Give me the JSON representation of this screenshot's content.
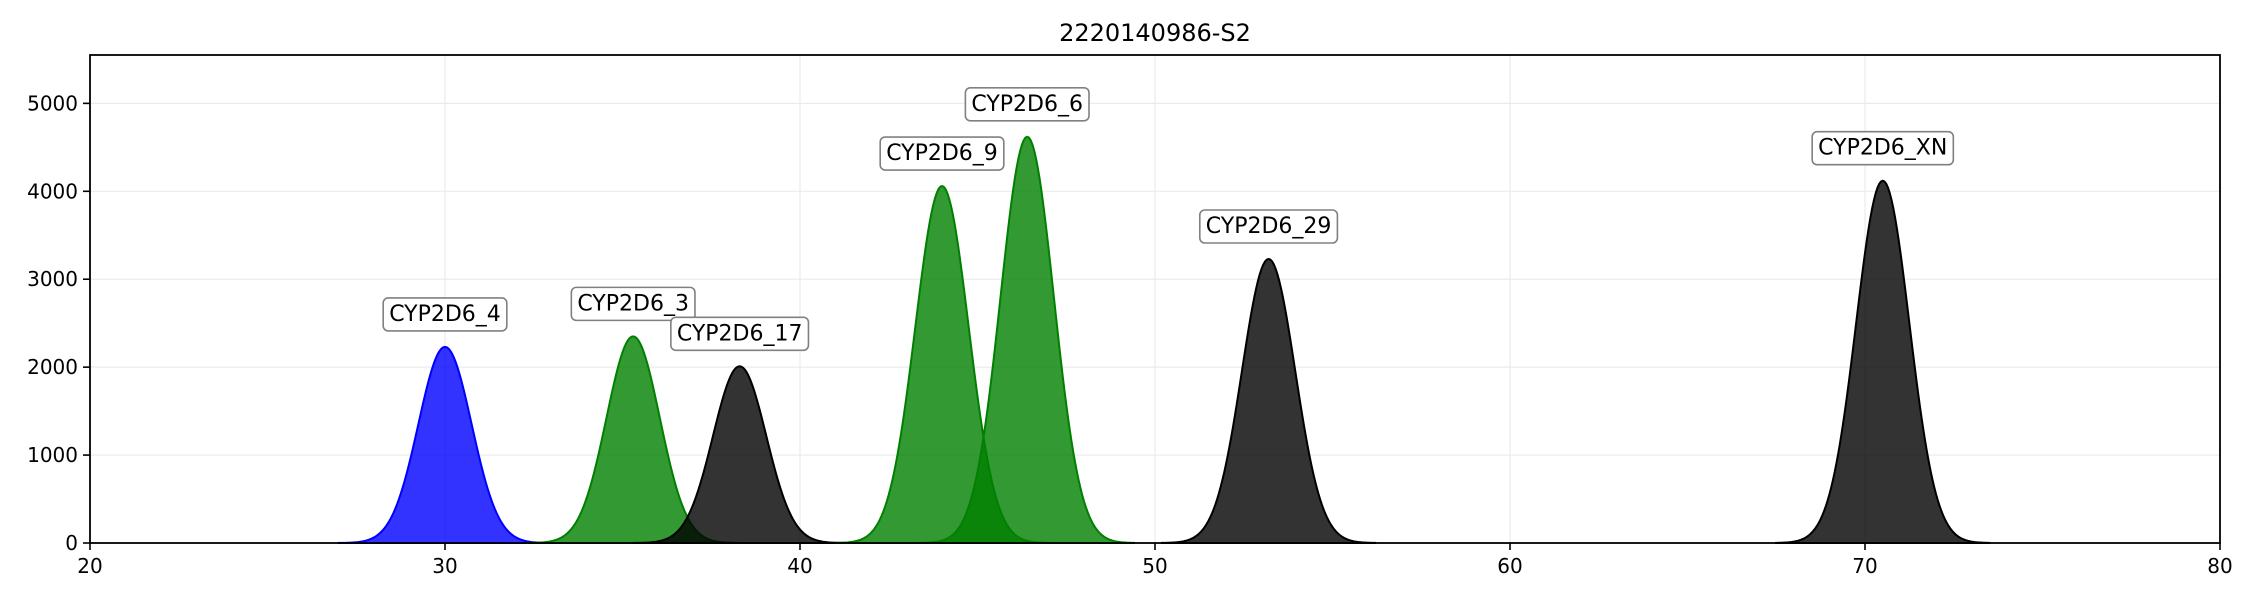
{
  "chart_data": {
    "type": "area",
    "title": "2220140986-S2",
    "xlabel": "",
    "ylabel": "",
    "xlim": [
      20,
      80
    ],
    "ylim": [
      0,
      5550
    ],
    "xticks": [
      20,
      30,
      40,
      50,
      60,
      70,
      80
    ],
    "yticks": [
      0,
      1000,
      2000,
      3000,
      4000,
      5000
    ],
    "grid": true,
    "legend": "none",
    "series": [
      {
        "name": "CYP2D6_4",
        "center": 30.0,
        "height": 2230,
        "sigma": 0.75,
        "color": "#0000ff"
      },
      {
        "name": "CYP2D6_3",
        "center": 35.3,
        "height": 2350,
        "sigma": 0.75,
        "color": "#008000"
      },
      {
        "name": "CYP2D6_17",
        "center": 38.3,
        "height": 2010,
        "sigma": 0.75,
        "color": "#000000"
      },
      {
        "name": "CYP2D6_9",
        "center": 44.0,
        "height": 4060,
        "sigma": 0.75,
        "color": "#008000"
      },
      {
        "name": "CYP2D6_6",
        "center": 46.4,
        "height": 4620,
        "sigma": 0.75,
        "color": "#008000"
      },
      {
        "name": "CYP2D6_29",
        "center": 53.2,
        "height": 3230,
        "sigma": 0.75,
        "color": "#000000"
      },
      {
        "name": "CYP2D6_XN",
        "center": 70.5,
        "height": 4120,
        "sigma": 0.75,
        "color": "#000000"
      }
    ],
    "fill_opacity": 0.8
  }
}
